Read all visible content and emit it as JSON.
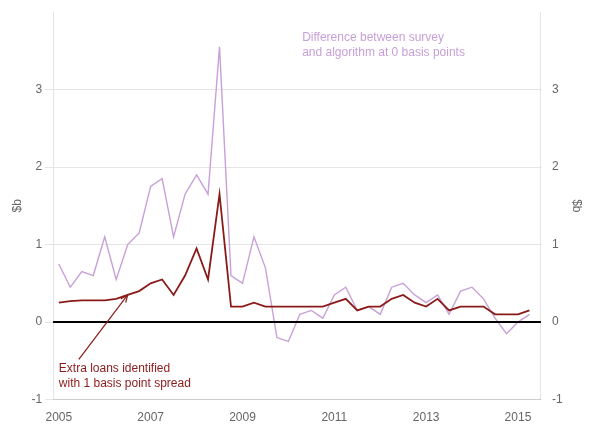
{
  "chart_data": {
    "type": "line",
    "x": [
      2005.0,
      2005.25,
      2005.5,
      2005.75,
      2006.0,
      2006.25,
      2006.5,
      2006.75,
      2007.0,
      2007.25,
      2007.5,
      2007.75,
      2008.0,
      2008.25,
      2008.5,
      2008.75,
      2009.0,
      2009.25,
      2009.5,
      2009.75,
      2010.0,
      2010.25,
      2010.5,
      2010.75,
      2011.0,
      2011.25,
      2011.5,
      2011.75,
      2012.0,
      2012.25,
      2012.5,
      2012.75,
      2013.0,
      2013.25,
      2013.5,
      2013.75,
      2014.0,
      2014.25,
      2014.5,
      2014.75,
      2015.0,
      2015.25
    ],
    "series": [
      {
        "color": "#c8a0d8",
        "values": [
          0.75,
          0.45,
          0.65,
          0.6,
          1.1,
          0.55,
          1.0,
          1.15,
          1.75,
          1.85,
          1.1,
          1.65,
          1.9,
          1.65,
          3.55,
          0.6,
          0.5,
          1.1,
          0.7,
          -0.2,
          -0.25,
          0.1,
          0.15,
          0.05,
          0.35,
          0.45,
          0.15,
          0.2,
          0.1,
          0.45,
          0.5,
          0.35,
          0.25,
          0.35,
          0.1,
          0.4,
          0.45,
          0.3,
          0.05,
          -0.15,
          0.0,
          0.1
        ]
      },
      {
        "color": "#8b1a1a",
        "values": [
          0.25,
          0.27,
          0.28,
          0.28,
          0.28,
          0.3,
          0.35,
          0.4,
          0.5,
          0.55,
          0.35,
          0.6,
          0.95,
          0.55,
          1.65,
          0.2,
          0.2,
          0.25,
          0.2,
          0.2,
          0.2,
          0.2,
          0.2,
          0.2,
          0.25,
          0.3,
          0.15,
          0.2,
          0.2,
          0.3,
          0.35,
          0.25,
          0.2,
          0.3,
          0.15,
          0.2,
          0.2,
          0.2,
          0.1,
          0.1,
          0.1,
          0.15
        ]
      }
    ],
    "xlim": [
      2004.875,
      2015.5
    ],
    "xticks": [
      2005,
      2007,
      2009,
      2011,
      2013,
      2015
    ],
    "ylim": [
      -1,
      4
    ],
    "yticks": [
      -1,
      0,
      1,
      2,
      3
    ],
    "y2lim": [
      -1,
      4
    ],
    "y2ticks": [
      -1,
      0,
      1,
      2,
      3
    ],
    "ylabel": "$b",
    "y2label": "$b",
    "grid": "y",
    "legend": false,
    "hlines": [
      {
        "y": 0,
        "color": "#000000"
      }
    ],
    "annotations": [
      {
        "text": "Difference between survey\nand algorithm at 0 basis points",
        "x": 2010.3,
        "y": 3.75,
        "color": "#c8a0d8"
      },
      {
        "text": "Extra loans identified\nwith 1 basis point spread",
        "x": 2005.0,
        "y": -0.52,
        "color": "#8b1a1a",
        "arrow_x": 2006.5,
        "arrow_y": 0.35
      }
    ]
  }
}
